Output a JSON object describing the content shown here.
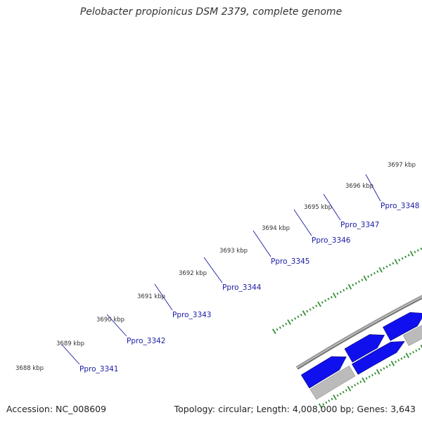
{
  "title": "Pelobacter propionicus DSM 2379, complete genome",
  "footer": {
    "accession": "Accession: NC_008609",
    "summary": "Topology: circular; Length: 4,008,000 bp; Genes: 3,643"
  },
  "colors": {
    "cds": "#1010ee",
    "backbone": "#8c8c8c",
    "gray_feature": "#bbbbbb",
    "cyan_feature": "#22c8d8",
    "olive_feature": "#7a9a2a",
    "tick": "#2e8b2e",
    "label_line": "#1a1aa6"
  },
  "scale_labels": [
    "3688 kbp",
    "3689 kbp",
    "3690 kbp",
    "3691 kbp",
    "3692 kbp",
    "3693 kbp",
    "3694 kbp",
    "3695 kbp",
    "3696 kbp",
    "3697 kbp"
  ],
  "gene_labels": [
    "Ppro_3341",
    "Ppro_3342",
    "Ppro_3343",
    "Ppro_3344",
    "Ppro_3345",
    "Ppro_3346",
    "Ppro_3347",
    "Ppro_3348"
  ]
}
